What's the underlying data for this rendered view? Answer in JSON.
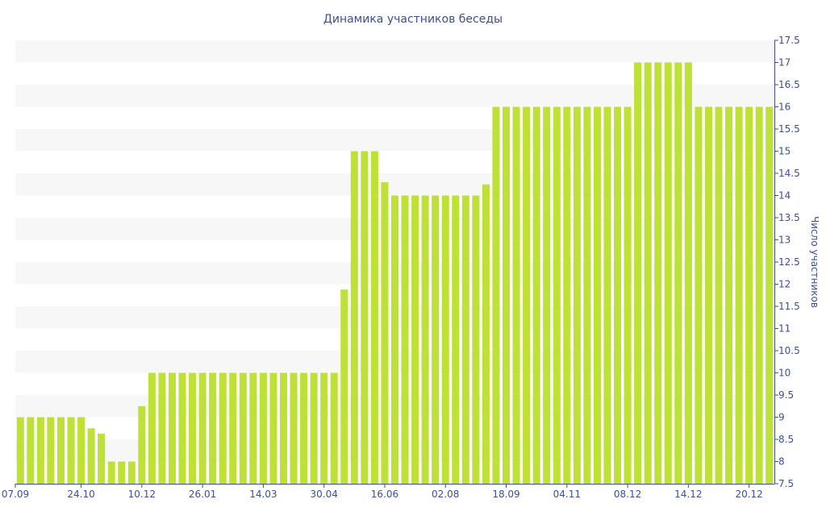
{
  "colors": {
    "bar": "#bde136",
    "band": "#f7f7f7",
    "axis": "#3f4f92",
    "text": "#3f4f92"
  },
  "chart_data": {
    "type": "bar",
    "title": "Динамика участников беседы",
    "xlabel": "",
    "ylabel": "Число участников",
    "ylim": [
      7.5,
      17.5
    ],
    "y_ticks": [
      7.5,
      8,
      8.5,
      9,
      9.5,
      10,
      10.5,
      11,
      11.5,
      12,
      12.5,
      13,
      13.5,
      14,
      14.5,
      15,
      15.5,
      16,
      16.5,
      17,
      17.5
    ],
    "y_axis_position": "right",
    "grid": "alternating-bands",
    "x_tick_labels": [
      {
        "label": "07.09",
        "index": 0
      },
      {
        "label": "24.10",
        "index": 6
      },
      {
        "label": "10.12",
        "index": 12
      },
      {
        "label": "26.01",
        "index": 18
      },
      {
        "label": "14.03",
        "index": 24
      },
      {
        "label": "30.04",
        "index": 30
      },
      {
        "label": "16.06",
        "index": 36
      },
      {
        "label": "02.08",
        "index": 42
      },
      {
        "label": "18.09",
        "index": 48
      },
      {
        "label": "04.11",
        "index": 54
      },
      {
        "label": "08.12",
        "index": 60
      },
      {
        "label": "14.12",
        "index": 66
      },
      {
        "label": "20.12",
        "index": 72
      }
    ],
    "values": [
      9,
      9,
      9,
      9,
      9,
      9,
      9,
      8.75,
      8.63,
      8,
      8,
      8,
      9.25,
      10,
      10,
      10,
      10,
      10,
      10,
      10,
      10,
      10,
      10,
      10,
      10,
      10,
      10,
      10,
      10,
      10,
      10,
      10,
      11.88,
      15,
      15,
      15,
      14.3,
      14,
      14,
      14,
      14,
      14,
      14,
      14,
      14,
      14,
      14.25,
      16,
      16,
      16,
      16,
      16,
      16,
      16,
      16,
      16,
      16,
      16,
      16,
      16,
      16,
      17,
      17,
      17,
      17,
      17,
      17,
      16,
      16,
      16,
      16,
      16,
      16,
      16,
      16
    ]
  }
}
